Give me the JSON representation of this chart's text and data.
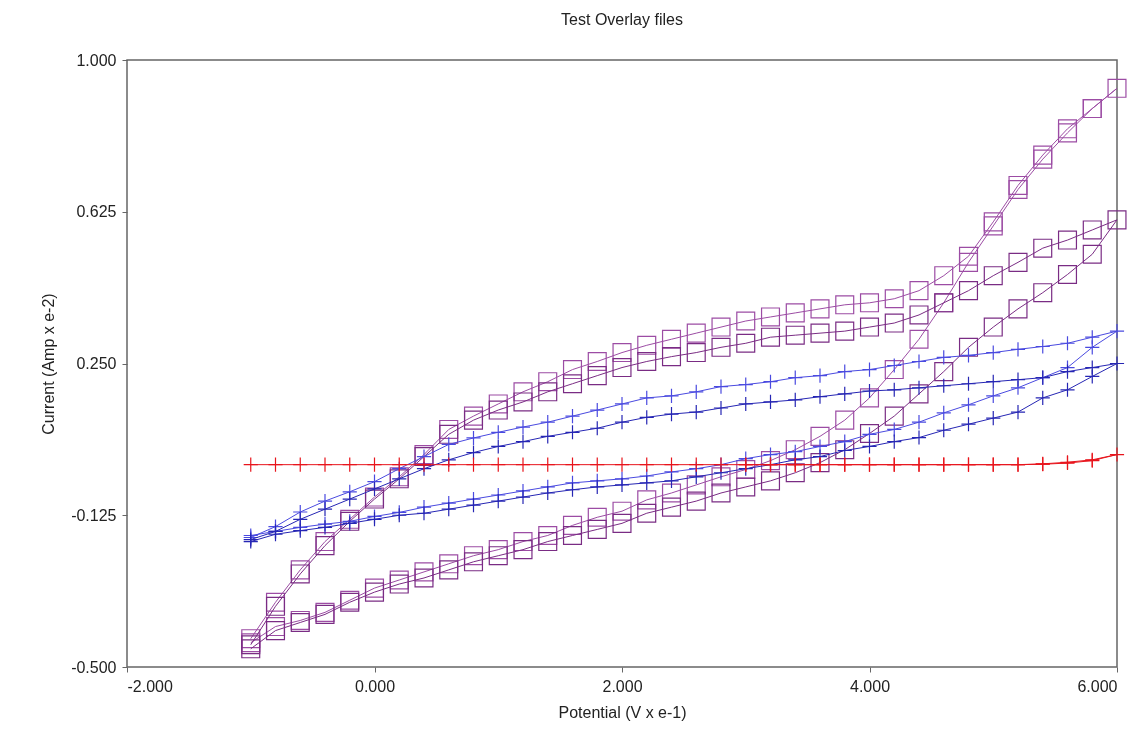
{
  "chart_data": {
    "type": "line",
    "title": "Test Overlay files",
    "xlabel": "Potential (V x e-1)",
    "ylabel": "Current (Amp x e-2)",
    "xlim": [
      -2,
      6
    ],
    "xticks": [
      {
        "value": -2,
        "label": "-2.000"
      },
      {
        "value": 0,
        "label": "0.000"
      },
      {
        "value": 2,
        "label": "2.000"
      },
      {
        "value": 4,
        "label": "4.000"
      },
      {
        "value": 6,
        "label": "6.000"
      }
    ],
    "ylim": [
      -0.5,
      1
    ],
    "yticks": [
      {
        "value": -0.5,
        "label": "-0.500"
      },
      {
        "value": -0.125,
        "label": "-0.125"
      },
      {
        "value": 0.25,
        "label": "0.250"
      },
      {
        "value": 0.625,
        "label": "0.625"
      },
      {
        "value": 1,
        "label": "1.000"
      }
    ],
    "grid": false,
    "line_style": "solid",
    "x": [
      -1,
      -0.8,
      -0.6,
      -0.4,
      -0.2,
      0,
      0.2,
      0.4,
      0.6,
      0.8,
      1,
      1.2,
      1.4,
      1.6,
      1.8,
      2,
      2.2,
      2.4,
      2.6,
      2.8,
      3,
      3.2,
      3.4,
      3.6,
      3.8,
      4,
      4.2,
      4.4,
      4.6,
      4.8,
      5,
      5.2,
      5.4,
      5.6,
      5.8,
      6,
      5.8,
      5.6,
      5.4,
      5.2,
      5,
      4.8,
      4.6,
      4.4,
      4.2,
      4,
      3.8,
      3.6,
      3.4,
      3.2,
      3,
      2.8,
      2.6,
      2.4,
      2.2,
      2,
      1.8,
      1.6,
      1.4,
      1.2,
      1,
      0.8,
      0.6,
      0.4,
      0.2,
      0,
      -0.2,
      -0.4,
      -0.6,
      -0.8,
      -1
    ],
    "series": [
      {
        "color": "#9c4ca4",
        "marker": "square",
        "values": [
          -0.43,
          -0.34,
          -0.26,
          -0.19,
          -0.135,
          -0.08,
          -0.03,
          0.025,
          0.087,
          0.12,
          0.15,
          0.18,
          0.205,
          0.235,
          0.255,
          0.277,
          0.295,
          0.31,
          0.325,
          0.34,
          0.355,
          0.365,
          0.375,
          0.385,
          0.395,
          0.4,
          0.41,
          0.43,
          0.467,
          0.515,
          0.6,
          0.69,
          0.765,
          0.83,
          0.88,
          0.93,
          0.88,
          0.82,
          0.755,
          0.68,
          0.59,
          0.5,
          0.4,
          0.31,
          0.235,
          0.165,
          0.11,
          0.07,
          0.037,
          0.01,
          -0.012,
          -0.03,
          -0.05,
          -0.07,
          -0.087,
          -0.115,
          -0.13,
          -0.15,
          -0.175,
          -0.19,
          -0.21,
          -0.225,
          -0.245,
          -0.265,
          -0.285,
          -0.305,
          -0.335,
          -0.365,
          -0.385,
          -0.4,
          -0.44
        ]
      },
      {
        "color": "#7a2c84",
        "marker": "square",
        "values": [
          -0.445,
          -0.35,
          -0.27,
          -0.2,
          -0.14,
          -0.085,
          -0.035,
          0.02,
          0.075,
          0.11,
          0.135,
          0.155,
          0.18,
          0.2,
          0.22,
          0.24,
          0.255,
          0.267,
          0.277,
          0.29,
          0.3,
          0.315,
          0.32,
          0.325,
          0.33,
          0.34,
          0.35,
          0.37,
          0.4,
          0.43,
          0.467,
          0.5,
          0.535,
          0.555,
          0.58,
          0.605,
          0.52,
          0.47,
          0.425,
          0.385,
          0.34,
          0.29,
          0.23,
          0.175,
          0.12,
          0.077,
          0.037,
          0.005,
          -0.02,
          -0.04,
          -0.055,
          -0.07,
          -0.09,
          -0.105,
          -0.12,
          -0.145,
          -0.16,
          -0.175,
          -0.19,
          -0.21,
          -0.225,
          -0.24,
          -0.26,
          -0.28,
          -0.295,
          -0.315,
          -0.34,
          -0.37,
          -0.39,
          -0.41,
          -0.455
        ]
      },
      {
        "color": "#4a4ae0",
        "marker": "cross",
        "values": [
          -0.18,
          -0.153,
          -0.117,
          -0.09,
          -0.067,
          -0.042,
          -0.01,
          0.02,
          0.05,
          0.066,
          0.08,
          0.093,
          0.105,
          0.12,
          0.135,
          0.15,
          0.165,
          0.17,
          0.18,
          0.193,
          0.198,
          0.205,
          0.215,
          0.22,
          0.23,
          0.235,
          0.245,
          0.255,
          0.265,
          0.27,
          0.277,
          0.285,
          0.292,
          0.3,
          0.315,
          0.33,
          0.29,
          0.24,
          0.215,
          0.19,
          0.17,
          0.148,
          0.128,
          0.105,
          0.087,
          0.075,
          0.057,
          0.045,
          0.032,
          0.025,
          0.015,
          0,
          -0.01,
          -0.018,
          -0.028,
          -0.035,
          -0.04,
          -0.045,
          -0.055,
          -0.065,
          -0.075,
          -0.085,
          -0.095,
          -0.105,
          -0.118,
          -0.128,
          -0.14,
          -0.147,
          -0.155,
          -0.165,
          -0.175
        ]
      },
      {
        "color": "#2626b4",
        "marker": "cross",
        "values": [
          -0.185,
          -0.165,
          -0.135,
          -0.11,
          -0.085,
          -0.06,
          -0.035,
          -0.01,
          0.012,
          0.03,
          0.045,
          0.057,
          0.07,
          0.08,
          0.09,
          0.105,
          0.117,
          0.125,
          0.13,
          0.14,
          0.15,
          0.155,
          0.16,
          0.168,
          0.175,
          0.182,
          0.185,
          0.19,
          0.195,
          0.2,
          0.205,
          0.21,
          0.215,
          0.23,
          0.24,
          0.25,
          0.218,
          0.185,
          0.165,
          0.13,
          0.115,
          0.1,
          0.085,
          0.067,
          0.057,
          0.045,
          0.035,
          0.02,
          0.012,
          0,
          -0.01,
          -0.02,
          -0.03,
          -0.04,
          -0.045,
          -0.05,
          -0.055,
          -0.062,
          -0.07,
          -0.08,
          -0.09,
          -0.1,
          -0.11,
          -0.12,
          -0.125,
          -0.135,
          -0.145,
          -0.155,
          -0.163,
          -0.172,
          -0.19
        ]
      },
      {
        "color": "#e8141c",
        "marker": "cross",
        "x": [
          -1,
          -0.8,
          -0.6,
          -0.4,
          -0.2,
          0,
          0.2,
          0.4,
          0.6,
          0.8,
          1,
          1.2,
          1.4,
          1.6,
          1.8,
          2,
          2.2,
          2.4,
          2.6,
          2.8,
          3,
          3.2,
          3.4,
          3.6,
          3.8,
          4,
          4.2,
          4.4,
          4.6,
          4.8,
          5,
          5.2,
          5.4,
          5.6,
          5.8,
          6,
          5.8,
          5.6,
          5.4,
          5.2,
          5,
          4.8,
          4.6,
          4.4,
          4.2,
          4,
          3.8,
          3.6,
          3.4,
          3.2,
          3
        ],
        "values": [
          0,
          0,
          0,
          0,
          0,
          0,
          0,
          0,
          0,
          0,
          0,
          0,
          0,
          0,
          0,
          0,
          0,
          0,
          0,
          0,
          0,
          0,
          0,
          0,
          0,
          0,
          0,
          0,
          0,
          0,
          0,
          0,
          0.002,
          0.006,
          0.012,
          0.025,
          0.01,
          0.004,
          0.001,
          0,
          0,
          0,
          0,
          0,
          0,
          0,
          0,
          0,
          0,
          0,
          0
        ]
      }
    ]
  }
}
